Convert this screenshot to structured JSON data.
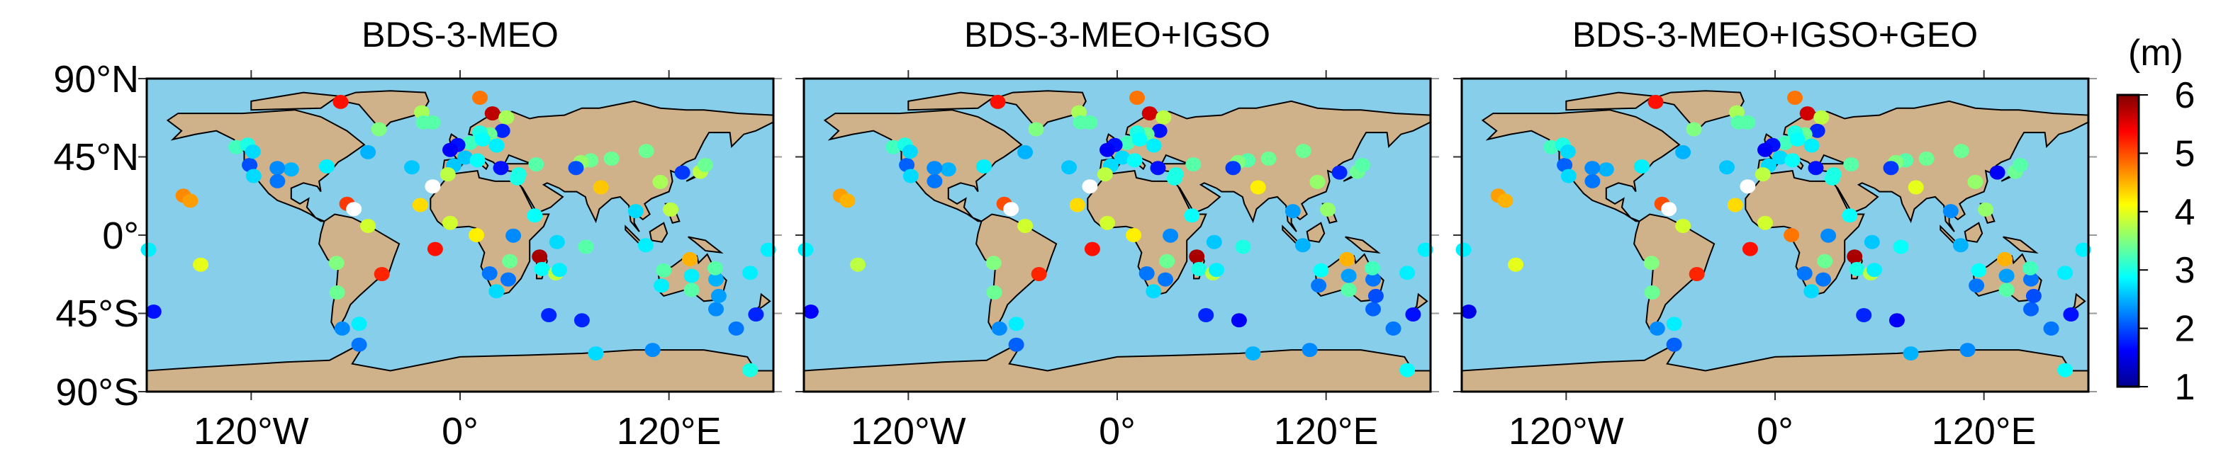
{
  "panels": [
    {
      "title": "BDS-3-MEO"
    },
    {
      "title": "BDS-3-MEO+IGSO"
    },
    {
      "title": "BDS-3-MEO+IGSO+GEO"
    }
  ],
  "y_tick_labels": [
    "90°N",
    "45°N",
    "0°",
    "45°S",
    "90°S"
  ],
  "x_tick_labels": [
    "120°W",
    "0°",
    "120°E"
  ],
  "colorbar": {
    "unit": "(m)",
    "min": 1,
    "max": 6,
    "ticks": [
      "1",
      "2",
      "3",
      "4",
      "5",
      "6"
    ],
    "colormap": "jet"
  },
  "colors": {
    "ocean": "#87CEEB",
    "land": "#CFB28A",
    "out_of_range": "#FFFFFF"
  },
  "chart_data": {
    "type": "scatter",
    "projection": "equirectangular",
    "xlim": [
      -180,
      180
    ],
    "ylim": [
      -90,
      90
    ],
    "value_unit": "m",
    "note_values": "v = [BDS-3-MEO, BDS-3-MEO+IGSO, BDS-3-MEO+IGSO+GEO]; null = white (outside colour scale)",
    "stations": [
      {
        "lon": -68.6,
        "lat": 76.6,
        "v": [
          5.3,
          5.3,
          5.3
        ]
      },
      {
        "lon": 11.4,
        "lat": 79,
        "v": [
          4.8,
          4.8,
          4.8
        ]
      },
      {
        "lon": -22,
        "lat": 70.6,
        "v": [
          3.7,
          3.7,
          3.7
        ]
      },
      {
        "lon": -15.7,
        "lat": 64.8,
        "v": [
          3.3,
          3.3,
          3.3
        ]
      },
      {
        "lon": -21,
        "lat": 64.8,
        "v": [
          3.3,
          3.3,
          3.3
        ]
      },
      {
        "lon": -46.6,
        "lat": 60.9,
        "v": [
          3.5,
          3.5,
          3.5
        ]
      },
      {
        "lon": 18.6,
        "lat": 70,
        "v": [
          5.7,
          5.6,
          5.6
        ]
      },
      {
        "lon": 26.6,
        "lat": 67.7,
        "v": [
          3.7,
          3.8,
          3.8
        ]
      },
      {
        "lon": 24.3,
        "lat": 60,
        "v": [
          1.8,
          1.7,
          1.8
        ]
      },
      {
        "lon": 17,
        "lat": 58,
        "v": [
          3.4,
          3.4,
          3.4
        ]
      },
      {
        "lon": 11.4,
        "lat": 59,
        "v": [
          3.0,
          3.0,
          3.0
        ]
      },
      {
        "lon": 5.7,
        "lat": 53,
        "v": [
          3.2,
          3.2,
          3.2
        ]
      },
      {
        "lon": -1.4,
        "lat": 51.8,
        "v": [
          1.7,
          1.7,
          1.7
        ]
      },
      {
        "lon": -5.7,
        "lat": 49,
        "v": [
          1.6,
          1.6,
          1.6
        ]
      },
      {
        "lon": 21,
        "lat": 51.5,
        "v": [
          2.8,
          2.8,
          2.8
        ]
      },
      {
        "lon": 12.9,
        "lat": 55,
        "v": [
          2.9,
          2.9,
          2.9
        ]
      },
      {
        "lon": 2.9,
        "lat": 44.6,
        "v": [
          2.6,
          2.7,
          2.7
        ]
      },
      {
        "lon": 10,
        "lat": 43,
        "v": [
          2.9,
          2.9,
          2.9
        ]
      },
      {
        "lon": -3.7,
        "lat": 40,
        "v": [
          2.6,
          2.7,
          2.7
        ]
      },
      {
        "lon": 23.4,
        "lat": 38.6,
        "v": [
          1.7,
          1.7,
          1.7
        ]
      },
      {
        "lon": -7,
        "lat": 35,
        "v": [
          3.8,
          3.8,
          3.8
        ]
      },
      {
        "lon": 33.7,
        "lat": 35,
        "v": [
          3.0,
          3.0,
          3.0
        ]
      },
      {
        "lon": 43.7,
        "lat": 40.7,
        "v": [
          3.3,
          3.3,
          3.3
        ]
      },
      {
        "lon": -15.7,
        "lat": 28,
        "v": [
          null,
          null,
          null
        ]
      },
      {
        "lon": -52.9,
        "lat": 47.7,
        "v": [
          2.5,
          2.5,
          2.5
        ]
      },
      {
        "lon": -27.7,
        "lat": 39,
        "v": [
          2.6,
          2.6,
          2.6
        ]
      },
      {
        "lon": -76.6,
        "lat": 39.5,
        "v": [
          2.8,
          2.8,
          2.8
        ]
      },
      {
        "lon": -97,
        "lat": 37.8,
        "v": [
          2.5,
          2.5,
          2.5
        ]
      },
      {
        "lon": -105,
        "lat": 38.6,
        "v": [
          2.3,
          2.3,
          2.3
        ]
      },
      {
        "lon": -104.9,
        "lat": 31,
        "v": [
          2.2,
          2.2,
          2.2
        ]
      },
      {
        "lon": -120.9,
        "lat": 40.3,
        "v": [
          2.0,
          2.1,
          2.1
        ]
      },
      {
        "lon": -118.6,
        "lat": 34,
        "v": [
          2.7,
          2.7,
          2.7
        ]
      },
      {
        "lon": -128.6,
        "lat": 50.6,
        "v": [
          3.2,
          3.2,
          3.2
        ]
      },
      {
        "lon": -122,
        "lat": 52,
        "v": [
          3.0,
          3.0,
          3.0
        ]
      },
      {
        "lon": -119,
        "lat": 48,
        "v": [
          2.7,
          2.7,
          2.7
        ]
      },
      {
        "lon": -159,
        "lat": 22.7,
        "v": [
          4.7,
          4.6,
          4.6
        ]
      },
      {
        "lon": -155,
        "lat": 19.8,
        "v": [
          4.6,
          4.5,
          4.5
        ]
      },
      {
        "lon": -64.9,
        "lat": 18,
        "v": [
          5.1,
          5.0,
          5.0
        ]
      },
      {
        "lon": -61,
        "lat": 15,
        "v": [
          null,
          null,
          null
        ]
      },
      {
        "lon": -22.9,
        "lat": 17.3,
        "v": [
          4.3,
          4.3,
          4.3
        ]
      },
      {
        "lon": -52.9,
        "lat": 5.3,
        "v": [
          3.9,
          3.9,
          3.9
        ]
      },
      {
        "lon": -5.7,
        "lat": 7,
        "v": [
          3.9,
          3.9,
          3.9
        ]
      },
      {
        "lon": 9.4,
        "lat": 0,
        "v": [
          4.2,
          4.2,
          4.8
        ]
      },
      {
        "lon": -14.3,
        "lat": -8,
        "v": [
          5.3,
          5.3,
          5.3
        ]
      },
      {
        "lon": 30.6,
        "lat": -0.3,
        "v": [
          2.3,
          2.3,
          2.3
        ]
      },
      {
        "lon": 42.9,
        "lat": 11.3,
        "v": [
          2.9,
          2.9,
          2.9
        ]
      },
      {
        "lon": 55.7,
        "lat": -4,
        "v": [
          2.7,
          2.6,
          2.6
        ]
      },
      {
        "lon": 72.3,
        "lat": -6.7,
        "v": [
          3.3,
          3.0,
          2.9
        ]
      },
      {
        "lon": 45.7,
        "lat": -12.3,
        "v": [
          5.8,
          5.8,
          5.8
        ]
      },
      {
        "lon": 47,
        "lat": -19.5,
        "v": [
          2.9,
          3.0,
          3.0
        ]
      },
      {
        "lon": 55,
        "lat": -22,
        "v": [
          3.8,
          3.8,
          3.8
        ]
      },
      {
        "lon": 57,
        "lat": -20,
        "v": [
          2.8,
          2.8,
          2.8
        ]
      },
      {
        "lon": 28.6,
        "lat": -15,
        "v": [
          3.4,
          3.4,
          3.4
        ]
      },
      {
        "lon": 17,
        "lat": -22,
        "v": [
          2.2,
          2.2,
          2.2
        ]
      },
      {
        "lon": 27.7,
        "lat": -25.5,
        "v": [
          2.2,
          2.2,
          2.2
        ]
      },
      {
        "lon": 20.9,
        "lat": -32.3,
        "v": [
          2.7,
          2.7,
          2.7
        ]
      },
      {
        "lon": -71,
        "lat": -16,
        "v": [
          3.5,
          3.5,
          3.5
        ]
      },
      {
        "lon": -44.9,
        "lat": -22.4,
        "v": [
          5.2,
          5.2,
          5.2
        ]
      },
      {
        "lon": -70.6,
        "lat": -33,
        "v": [
          3.4,
          3.4,
          3.4
        ]
      },
      {
        "lon": -67.7,
        "lat": -53.7,
        "v": [
          2.3,
          2.3,
          2.3
        ]
      },
      {
        "lon": -58,
        "lat": -51,
        "v": [
          2.8,
          2.8,
          2.8
        ]
      },
      {
        "lon": -58,
        "lat": -63,
        "v": [
          2.2,
          2.1,
          2.1
        ]
      },
      {
        "lon": -149,
        "lat": -17,
        "v": [
          4.0,
          3.8,
          4.0
        ]
      },
      {
        "lon": -176,
        "lat": -44,
        "v": [
          1.7,
          1.6,
          1.5
        ]
      },
      {
        "lon": -179,
        "lat": -8.4,
        "v": [
          2.8,
          2.8,
          2.8
        ]
      },
      {
        "lon": 177,
        "lat": -8.4,
        "v": [
          2.8,
          2.8,
          2.8
        ]
      },
      {
        "lon": 51,
        "lat": -46,
        "v": [
          1.8,
          1.8,
          1.8
        ]
      },
      {
        "lon": 70,
        "lat": -49,
        "v": [
          1.8,
          1.6,
          1.6
        ]
      },
      {
        "lon": 78,
        "lat": -68,
        "v": [
          2.7,
          2.5,
          2.5
        ]
      },
      {
        "lon": 110.6,
        "lat": -66,
        "v": [
          2.3,
          2.3,
          2.3
        ]
      },
      {
        "lon": 166.6,
        "lat": -77.6,
        "v": [
          3.0,
          2.9,
          2.9
        ]
      },
      {
        "lon": 158.6,
        "lat": -53.7,
        "v": [
          2.2,
          2.2,
          2.2
        ]
      },
      {
        "lon": 170,
        "lat": -45.6,
        "v": [
          1.8,
          1.7,
          1.7
        ]
      },
      {
        "lon": 166.6,
        "lat": -21.7,
        "v": [
          2.8,
          2.8,
          2.8
        ]
      },
      {
        "lon": 147,
        "lat": -42.6,
        "v": [
          2.3,
          2.1,
          2.1
        ]
      },
      {
        "lon": 148.6,
        "lat": -35,
        "v": [
          2.4,
          2.0,
          2.0
        ]
      },
      {
        "lon": 147,
        "lat": -25.5,
        "v": [
          2.5,
          2.2,
          2.2
        ]
      },
      {
        "lon": 146.6,
        "lat": -19,
        "v": [
          3.3,
          3.2,
          3.2
        ]
      },
      {
        "lon": 133,
        "lat": -31.5,
        "v": [
          3.3,
          3.3,
          3.3
        ]
      },
      {
        "lon": 133,
        "lat": -23.4,
        "v": [
          2.8,
          2.4,
          2.4
        ]
      },
      {
        "lon": 132,
        "lat": -13.8,
        "v": [
          4.5,
          4.5,
          4.5
        ]
      },
      {
        "lon": 117,
        "lat": -20.3,
        "v": [
          3.3,
          2.9,
          2.9
        ]
      },
      {
        "lon": 115.7,
        "lat": -29,
        "v": [
          2.8,
          2.2,
          2.2
        ]
      },
      {
        "lon": 106.6,
        "lat": -5.8,
        "v": [
          2.8,
          2.5,
          2.5
        ]
      },
      {
        "lon": 100.9,
        "lat": 13.8,
        "v": [
          2.7,
          2.4,
          2.3
        ]
      },
      {
        "lon": 121,
        "lat": 14.7,
        "v": [
          3.8,
          3.6,
          3.6
        ]
      },
      {
        "lon": 115,
        "lat": 30.6,
        "v": [
          3.7,
          3.6,
          3.6
        ]
      },
      {
        "lon": 127.7,
        "lat": 36,
        "v": [
          1.9,
          1.8,
          1.6
        ]
      },
      {
        "lon": 138,
        "lat": 36.4,
        "v": [
          3.8,
          3.4,
          3.4
        ]
      },
      {
        "lon": 140.9,
        "lat": 40.3,
        "v": [
          3.4,
          3.3,
          3.3
        ]
      },
      {
        "lon": 107,
        "lat": 48.4,
        "v": [
          3.4,
          3.4,
          3.4
        ]
      },
      {
        "lon": 87,
        "lat": 44,
        "v": [
          3.4,
          3.4,
          3.4
        ]
      },
      {
        "lon": 75,
        "lat": 43,
        "v": [
          3.4,
          3.3,
          3.3
        ]
      },
      {
        "lon": 69.4,
        "lat": 42,
        "v": [
          3.6,
          3.5,
          3.5
        ]
      },
      {
        "lon": 66.6,
        "lat": 38.6,
        "v": [
          2.0,
          1.9,
          1.9
        ]
      },
      {
        "lon": 80.9,
        "lat": 27.5,
        "v": [
          4.4,
          4.2,
          4.0
        ]
      },
      {
        "lon": 32.9,
        "lat": 32.6,
        "v": [
          3.0,
          3.0,
          3.0
        ]
      }
    ]
  }
}
